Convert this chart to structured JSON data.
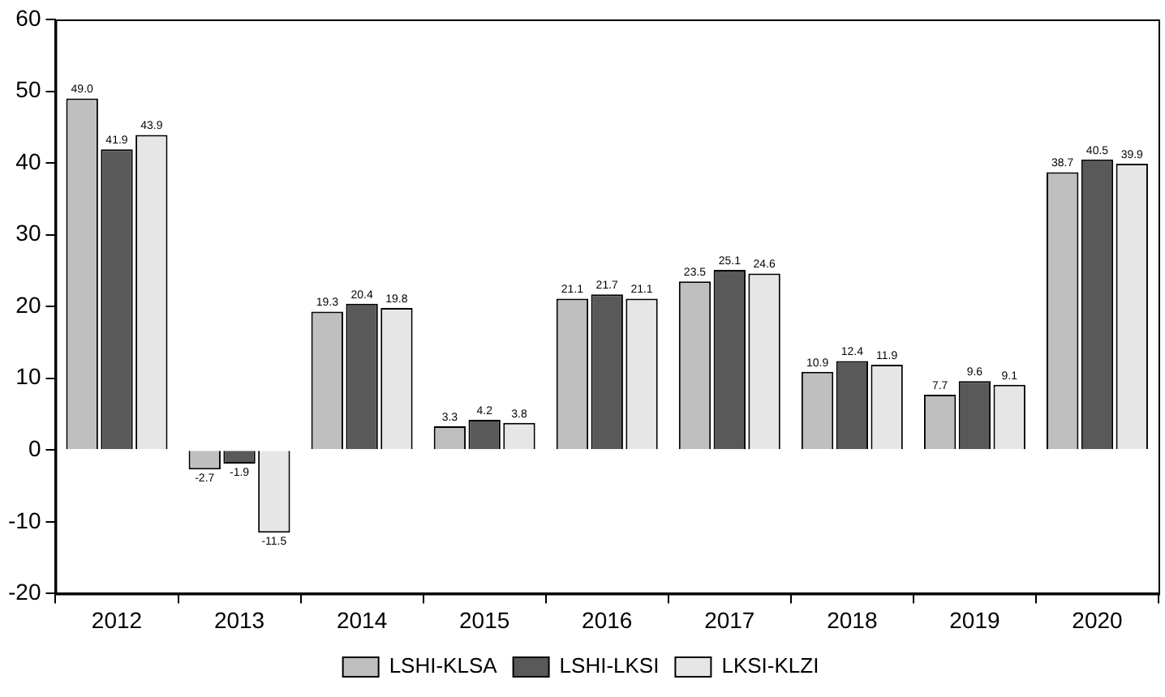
{
  "chart_data": {
    "type": "bar",
    "categories": [
      "2012",
      "2013",
      "2014",
      "2015",
      "2016",
      "2017",
      "2018",
      "2019",
      "2020"
    ],
    "series": [
      {
        "name": "LSHI-KLSA",
        "color": "#bfbfbf",
        "values": [
          49.0,
          -2.7,
          19.3,
          3.3,
          21.1,
          23.5,
          10.9,
          7.7,
          38.7
        ],
        "value_labels": [
          "49.0",
          "-2.7",
          "19.3",
          "3.3",
          "21.1",
          "23.5",
          "10.9",
          "7.7",
          "38.7"
        ]
      },
      {
        "name": "LSHI-LKSI",
        "color": "#595959",
        "values": [
          41.9,
          -1.9,
          20.4,
          4.2,
          21.7,
          25.1,
          12.4,
          9.6,
          40.5
        ],
        "value_labels": [
          "41.9",
          "-1.9",
          "20.4",
          "4.2",
          "21.7",
          "25.1",
          "12.4",
          "9.6",
          "40.5"
        ]
      },
      {
        "name": "LKSI-KLZI",
        "color": "#e6e6e6",
        "values": [
          43.9,
          -11.5,
          19.8,
          3.8,
          21.1,
          24.6,
          11.9,
          9.1,
          39.9
        ],
        "value_labels": [
          "43.9",
          "-11.5",
          "19.8",
          "3.8",
          "21.1",
          "24.6",
          "11.9",
          "9.1",
          "39.9"
        ]
      }
    ],
    "ylim": [
      -20,
      60
    ],
    "yticks": [
      -20,
      -10,
      0,
      10,
      20,
      30,
      40,
      50,
      60
    ],
    "grid": false,
    "legend": "bottom"
  }
}
